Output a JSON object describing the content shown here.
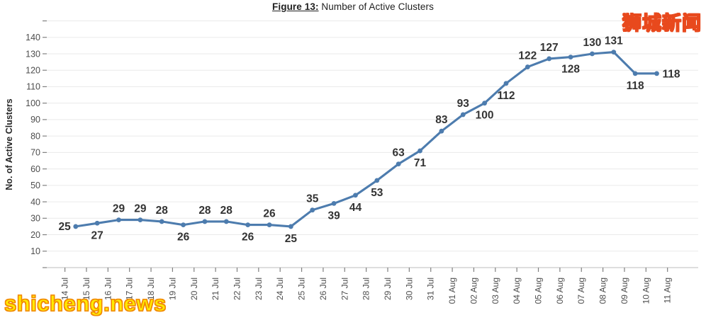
{
  "title": {
    "prefix": "Figure 13:",
    "rest": " Number of Active Clusters"
  },
  "watermarks": {
    "top_right": "狮城新闻",
    "bottom_left": "shicheng.news"
  },
  "chart_data": {
    "type": "line",
    "title": "Figure 13: Number of Active Clusters",
    "ylabel": "No. of Active Clusters",
    "xlabel": "",
    "categories": [
      "14 Jul",
      "15 Jul",
      "16 Jul",
      "17 Jul",
      "18 Jul",
      "19 Jul",
      "20 Jul",
      "21 Jul",
      "22 Jul",
      "23 Jul",
      "24 Jul",
      "25 Jul",
      "26 Jul",
      "27 Jul",
      "28 Jul",
      "29 Jul",
      "30 Jul",
      "31 Jul",
      "01 Aug",
      "02 Aug",
      "03 Aug",
      "04 Aug",
      "05 Aug",
      "06 Aug",
      "07 Aug",
      "08 Aug",
      "09 Aug",
      "10 Aug",
      "11 Aug"
    ],
    "values": [
      25,
      27,
      29,
      29,
      28,
      26,
      28,
      28,
      26,
      26,
      25,
      35,
      39,
      44,
      53,
      63,
      71,
      83,
      93,
      100,
      112,
      122,
      127,
      128,
      130,
      131,
      118,
      118,
      null
    ],
    "label_positions": [
      "left",
      "below",
      "above",
      "above",
      "above",
      "below",
      "above",
      "above",
      "below",
      "above",
      "below",
      "above",
      "below",
      "below",
      "below",
      "above",
      "below",
      "above",
      "above",
      "below",
      "below",
      "above",
      "above",
      "below",
      "above",
      "above",
      "below",
      "right",
      null
    ],
    "ylim": [
      0,
      150
    ],
    "ytick_step": 10,
    "ytick_label_range": [
      10,
      140
    ],
    "grid": true,
    "legend": "none",
    "line_color": "#4d7cae",
    "marker_color": "#4d7cae",
    "data_label_color": "#333333",
    "axis_text_color": "#4d4d4d",
    "gridline_color": "#eaeaea",
    "axis_line_color": "#c9c9c9",
    "tick_color": "#808080"
  }
}
